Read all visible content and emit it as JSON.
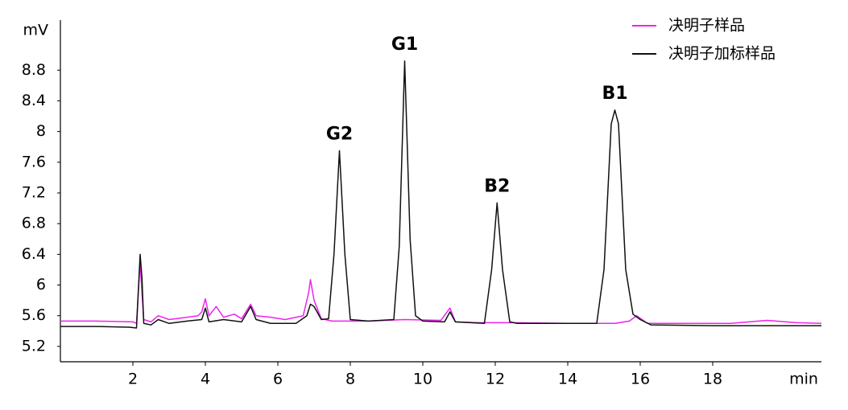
{
  "chart_data": {
    "type": "line",
    "x_label": "min",
    "y_label": "mV",
    "xlim": [
      0,
      21
    ],
    "xticks": [
      2,
      4,
      6,
      8,
      10,
      12,
      14,
      16,
      18
    ],
    "ylim": [
      5.0,
      9.4
    ],
    "yticks": [
      5.2,
      5.6,
      6,
      6.4,
      6.8,
      7.2,
      7.6,
      8,
      8.4,
      8.8
    ],
    "legend": "top-right",
    "series": [
      {
        "name": "决明子样品",
        "color": "#ee22ee",
        "x": [
          0,
          1,
          2,
          2.1,
          2.2,
          2.25,
          2.3,
          2.5,
          2.7,
          3.0,
          3.5,
          3.8,
          3.9,
          4.0,
          4.1,
          4.3,
          4.5,
          4.8,
          5.0,
          5.25,
          5.4,
          5.8,
          6.2,
          6.7,
          6.85,
          6.9,
          7.0,
          7.2,
          7.5,
          8.5,
          9.5,
          10.5,
          10.75,
          10.9,
          11.5,
          12.5,
          14,
          15.3,
          15.7,
          15.9,
          16.2,
          17,
          18.5,
          19.5,
          20.3,
          21
        ],
        "values": [
          5.53,
          5.53,
          5.52,
          5.5,
          6.3,
          5.9,
          5.55,
          5.52,
          5.6,
          5.55,
          5.58,
          5.6,
          5.65,
          5.82,
          5.6,
          5.72,
          5.58,
          5.62,
          5.56,
          5.75,
          5.6,
          5.58,
          5.55,
          5.6,
          5.9,
          6.07,
          5.8,
          5.56,
          5.53,
          5.53,
          5.55,
          5.54,
          5.7,
          5.52,
          5.51,
          5.51,
          5.5,
          5.5,
          5.53,
          5.6,
          5.5,
          5.5,
          5.5,
          5.54,
          5.51,
          5.5
        ]
      },
      {
        "name": "决明子加标样品",
        "color": "#111111",
        "x": [
          0,
          1,
          1.9,
          2.1,
          2.2,
          2.25,
          2.3,
          2.5,
          2.7,
          3.0,
          3.5,
          3.9,
          4.0,
          4.1,
          4.5,
          5.0,
          5.25,
          5.4,
          5.8,
          6.5,
          6.8,
          6.9,
          7.0,
          7.2,
          7.4,
          7.55,
          7.7,
          7.85,
          8.0,
          8.5,
          9.2,
          9.35,
          9.5,
          9.65,
          9.8,
          10.0,
          10.6,
          10.75,
          10.9,
          11.7,
          11.9,
          12.05,
          12.2,
          12.4,
          12.6,
          14.8,
          15.0,
          15.2,
          15.3,
          15.4,
          15.6,
          15.8,
          16.0,
          16.3,
          18,
          21
        ],
        "values": [
          5.46,
          5.46,
          5.45,
          5.44,
          6.4,
          6.1,
          5.5,
          5.48,
          5.55,
          5.5,
          5.53,
          5.55,
          5.7,
          5.52,
          5.55,
          5.52,
          5.72,
          5.55,
          5.5,
          5.5,
          5.6,
          5.75,
          5.72,
          5.55,
          5.56,
          6.4,
          7.75,
          6.4,
          5.55,
          5.53,
          5.55,
          6.5,
          8.92,
          6.6,
          5.6,
          5.53,
          5.52,
          5.65,
          5.52,
          5.5,
          6.2,
          7.07,
          6.2,
          5.52,
          5.5,
          5.5,
          6.2,
          8.1,
          8.28,
          8.1,
          6.2,
          5.62,
          5.55,
          5.48,
          5.47,
          5.47
        ]
      }
    ],
    "annotations": [
      {
        "text": "G2",
        "x": 7.7,
        "y": 7.75
      },
      {
        "text": "G1",
        "x": 9.5,
        "y": 8.92
      },
      {
        "text": "B2",
        "x": 12.05,
        "y": 7.07
      },
      {
        "text": "B1",
        "x": 15.3,
        "y": 8.28
      }
    ]
  }
}
